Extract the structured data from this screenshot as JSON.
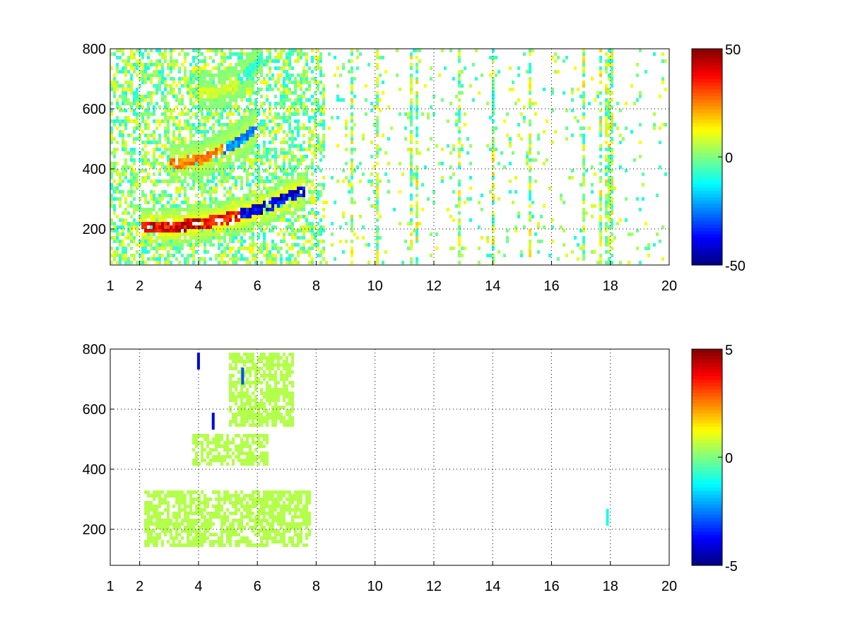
{
  "figure": {
    "background": "#ffffff",
    "colormap": "jet"
  },
  "chart_data": [
    {
      "type": "heatmap",
      "title": "",
      "xlabel": "",
      "ylabel": "",
      "xlim": [
        1,
        20
      ],
      "ylim": [
        80,
        800
      ],
      "grid": true,
      "grid_style": "dotted",
      "x_ticks": [
        1,
        2,
        4,
        6,
        8,
        10,
        12,
        14,
        16,
        18,
        20
      ],
      "y_ticks": [
        200,
        400,
        600,
        800
      ],
      "colorbar": {
        "min": -50,
        "max": 50,
        "ticks": [
          -50,
          0,
          50
        ]
      },
      "ridges": [
        {
          "x_start": 2.1,
          "x_end": 7.6,
          "y_start": 205,
          "y_end": 330,
          "peak_value": 50,
          "curve": "rising-right"
        },
        {
          "x_start": 3.0,
          "x_end": 6.0,
          "y_start": 420,
          "y_end": 540,
          "peak_value": 30,
          "curve": "rising-right"
        },
        {
          "x_start": 4.0,
          "x_end": 6.2,
          "y_start": 650,
          "y_end": 780,
          "peak_value": 10,
          "curve": "rising-right"
        }
      ],
      "vertical_streak_columns_x": [
        9.2,
        10.1,
        11.2,
        11.4,
        12.9,
        14.0,
        15.3,
        17.1,
        17.7,
        17.9,
        18.0
      ]
    },
    {
      "type": "heatmap",
      "title": "",
      "xlabel": "",
      "ylabel": "",
      "xlim": [
        1,
        20
      ],
      "ylim": [
        80,
        800
      ],
      "grid": true,
      "grid_style": "dotted",
      "x_ticks": [
        1,
        2,
        4,
        6,
        8,
        10,
        12,
        14,
        16,
        18,
        20
      ],
      "y_ticks": [
        200,
        400,
        600,
        800
      ],
      "colorbar": {
        "min": -5,
        "max": 5,
        "ticks": [
          -5,
          0,
          5
        ]
      },
      "dominant_value": 0.5,
      "regions": [
        {
          "x_start": 2.2,
          "x_end": 7.8,
          "y_start": 140,
          "y_end": 330,
          "value": 0.5
        },
        {
          "x_start": 3.8,
          "x_end": 6.4,
          "y_start": 415,
          "y_end": 520,
          "value": 0.5
        },
        {
          "x_start": 5.0,
          "x_end": 7.2,
          "y_start": 540,
          "y_end": 790,
          "value": 0.5
        }
      ],
      "outliers": [
        {
          "x": 4.0,
          "y": 760,
          "value": -4
        },
        {
          "x": 4.5,
          "y": 560,
          "value": -4
        },
        {
          "x": 5.5,
          "y": 710,
          "value": -3
        },
        {
          "x": 17.9,
          "y": 240,
          "value": -1
        }
      ]
    }
  ]
}
